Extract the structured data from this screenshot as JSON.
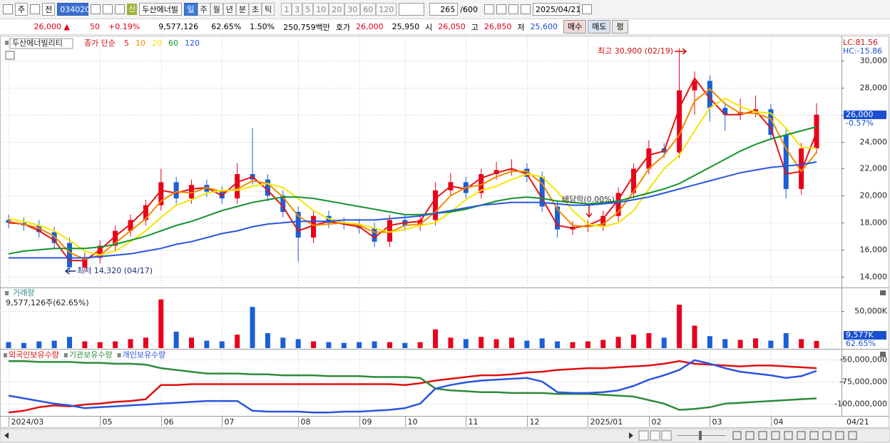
{
  "toolbar": {
    "market": "주",
    "prev": "전",
    "code": "034020",
    "credit": "신",
    "name": "두산에너빌",
    "periods": [
      "일",
      "주",
      "월",
      "년",
      "분",
      "초",
      "틱"
    ],
    "intervals": [
      "1",
      "3",
      "5",
      "10",
      "20",
      "30",
      "60",
      "120"
    ],
    "count": "265",
    "max": "/600",
    "date": "2025/04/21"
  },
  "quote": {
    "price": "26,000 ▲",
    "change": "50",
    "change_pct": "+0.19%",
    "volume": "9,577,126",
    "volume_ratio": "62.65%",
    "turnover_pct": "1.50%",
    "amount": "250,759백만",
    "ask_label": "호가",
    "ask": "26,000",
    "bid": "25,950",
    "open_label": "시",
    "open": "26,050",
    "high_label": "고",
    "high": "26,850",
    "low_label": "저",
    "low": "25,600",
    "buy": "매수",
    "sell": "매도",
    "flat": "펑"
  },
  "chart_data": [
    {
      "type": "candlestick",
      "title": "두산에너빌리티",
      "legend_title": "종가 단순",
      "categories": [
        "2024/03",
        null,
        null,
        null,
        null,
        null,
        "05",
        null,
        null,
        null,
        "06",
        null,
        null,
        null,
        "07",
        null,
        null,
        null,
        null,
        "08",
        null,
        null,
        null,
        "09",
        null,
        null,
        "10",
        null,
        null,
        null,
        "11",
        null,
        null,
        null,
        "12",
        null,
        null,
        null,
        "2025/01",
        null,
        null,
        null,
        "02",
        null,
        null,
        null,
        "03",
        null,
        null,
        null,
        "04",
        null,
        null,
        null
      ],
      "open": [
        18200,
        18000,
        17800,
        17300,
        16500,
        14700,
        15400,
        16300,
        17400,
        18200,
        19300,
        21000,
        19800,
        20800,
        20300,
        19800,
        21600,
        21200,
        20000,
        18800,
        16900,
        18500,
        18000,
        17900,
        17600,
        16600,
        18200,
        17800,
        18200,
        20400,
        21000,
        20200,
        21600,
        21900,
        22000,
        21400,
        19200,
        17500,
        17700,
        17800,
        18500,
        20200,
        22000,
        23500,
        23200,
        27800,
        28500,
        26500,
        26000,
        26200,
        26400,
        24500,
        20500,
        23500
      ],
      "high": [
        18600,
        18400,
        18200,
        17700,
        16900,
        15800,
        16700,
        17800,
        18600,
        19700,
        22000,
        21400,
        21200,
        21200,
        20700,
        22400,
        25000,
        21600,
        20400,
        19200,
        18900,
        18900,
        18400,
        18300,
        18000,
        18600,
        18600,
        18600,
        21000,
        21700,
        21400,
        22000,
        22500,
        22700,
        22400,
        21800,
        19600,
        18100,
        18200,
        18900,
        20600,
        22400,
        24100,
        23900,
        30900,
        29200,
        28900,
        26900,
        27200,
        27400,
        26800,
        24900,
        23900,
        26850
      ],
      "low": [
        17600,
        17400,
        16900,
        16100,
        14320,
        14400,
        15000,
        15900,
        17000,
        17800,
        18900,
        19400,
        19400,
        19900,
        19400,
        19400,
        20800,
        19600,
        18400,
        15100,
        16500,
        17600,
        17500,
        17200,
        16200,
        16200,
        17400,
        17400,
        17800,
        20000,
        19800,
        19800,
        21200,
        21500,
        21000,
        18800,
        16900,
        17100,
        17300,
        17400,
        18100,
        19800,
        21600,
        22800,
        22800,
        26000,
        25500,
        24800,
        25600,
        25800,
        24100,
        19800,
        20100,
        23100
      ],
      "close": [
        18000,
        17800,
        17300,
        16500,
        14700,
        15400,
        16300,
        17400,
        18200,
        19300,
        21000,
        19800,
        20800,
        20300,
        19800,
        21600,
        21200,
        20000,
        18800,
        16900,
        18500,
        18000,
        17900,
        17600,
        16600,
        18200,
        17800,
        18200,
        20400,
        21000,
        20200,
        21600,
        21900,
        22000,
        21400,
        19200,
        17500,
        17700,
        17800,
        18500,
        20200,
        22000,
        23500,
        23200,
        27800,
        28500,
        26500,
        26000,
        26200,
        26400,
        24500,
        20500,
        23500,
        26000
      ],
      "up_color": "#e8001c",
      "down_color": "#1a5fd6",
      "series": [
        {
          "name": "5",
          "color": "#e31414",
          "values": [
            18000,
            17900,
            17400,
            16700,
            15200,
            15200,
            16000,
            17000,
            17900,
            19000,
            20400,
            20200,
            20500,
            20600,
            20000,
            21000,
            21400,
            20400,
            19200,
            17400,
            17800,
            18100,
            17900,
            17700,
            16900,
            17800,
            18000,
            18100,
            19800,
            20700,
            20500,
            21300,
            21700,
            22000,
            21600,
            19800,
            17800,
            17600,
            17800,
            18300,
            19700,
            21500,
            23000,
            23300,
            26500,
            28700,
            27200,
            26000,
            26000,
            26300,
            25000,
            21600,
            21800,
            24700
          ]
        },
        {
          "name": "10",
          "color": "#f08a00",
          "values": [
            18100,
            17900,
            17600,
            17000,
            15800,
            15300,
            15600,
            16500,
            17400,
            18300,
            19600,
            20300,
            20200,
            20600,
            20300,
            20500,
            21100,
            20900,
            19900,
            18500,
            17800,
            17900,
            18000,
            17800,
            17300,
            17300,
            17800,
            17900,
            18800,
            20000,
            20600,
            20800,
            21400,
            21800,
            21800,
            20900,
            19000,
            17800,
            17700,
            17900,
            18800,
            20300,
            22000,
            23000,
            24500,
            27000,
            27900,
            26800,
            26100,
            26100,
            25700,
            23500,
            21800,
            23200
          ]
        },
        {
          "name": "20",
          "color": "#f2e600",
          "values": [
            18300,
            18100,
            17800,
            17400,
            16700,
            15900,
            15600,
            15900,
            16600,
            17400,
            18400,
            19300,
            19700,
            20200,
            20400,
            20400,
            20700,
            20900,
            20600,
            19800,
            18900,
            18300,
            18000,
            17900,
            17600,
            17300,
            17500,
            17800,
            18000,
            18800,
            19700,
            20400,
            20700,
            21200,
            21600,
            21400,
            20300,
            18900,
            17900,
            17700,
            18000,
            18900,
            20500,
            22000,
            23000,
            24800,
            26500,
            27200,
            26600,
            26200,
            26100,
            25000,
            23600,
            23500
          ]
        },
        {
          "name": "60",
          "color": "#13922e",
          "values": [
            15700,
            15900,
            16000,
            16100,
            16100,
            16100,
            16200,
            16400,
            16700,
            17000,
            17400,
            17800,
            18100,
            18500,
            18900,
            19200,
            19500,
            19700,
            19900,
            19900,
            19800,
            19600,
            19400,
            19200,
            19000,
            18800,
            18600,
            18600,
            18700,
            18800,
            19000,
            19300,
            19600,
            19800,
            19900,
            19800,
            19600,
            19500,
            19400,
            19500,
            19600,
            19900,
            20200,
            20500,
            20900,
            21500,
            22100,
            22700,
            23300,
            23800,
            24200,
            24500,
            24800,
            25100
          ]
        },
        {
          "name": "120",
          "color": "#2a55e0",
          "values": [
            15400,
            15400,
            15400,
            15400,
            15400,
            15400,
            15500,
            15600,
            15700,
            15900,
            16100,
            16400,
            16600,
            16900,
            17200,
            17400,
            17700,
            17900,
            18000,
            18100,
            18100,
            18100,
            18200,
            18200,
            18200,
            18300,
            18400,
            18500,
            18700,
            18900,
            19100,
            19300,
            19400,
            19500,
            19500,
            19500,
            19400,
            19300,
            19300,
            19400,
            19500,
            19700,
            19900,
            20200,
            20500,
            20800,
            21100,
            21400,
            21700,
            21900,
            22100,
            22200,
            22300,
            22500
          ]
        }
      ],
      "ylim": [
        13260,
        31740
      ],
      "yticks": [
        {
          "value": 14000,
          "label": "14,000"
        },
        {
          "value": 16000,
          "label": "16,000"
        },
        {
          "value": 18000,
          "label": "18,000"
        },
        {
          "value": 20000,
          "label": "20,000"
        },
        {
          "value": 22000,
          "label": "22,000"
        },
        {
          "value": 24000,
          "label": "24,000"
        },
        {
          "value": 26000,
          "label": "26,000"
        },
        {
          "value": 28000,
          "label": "28,000"
        },
        {
          "value": 30000,
          "label": "30,000"
        }
      ],
      "grid": true,
      "annotations": [
        "최고 30,900 (02/19)",
        "최저 14,320 (04/17)",
        "배당락(0.00%)"
      ],
      "lc_label": "LC:81.56",
      "hc_label": "HC:-15.86",
      "current_price_label": "26,000",
      "current_change_label": "-0.57%",
      "cursor_date": "04/21"
    },
    {
      "type": "bar",
      "title": "거래량",
      "subtitle": "9,577,126주(62.65%)",
      "values": [
        8000,
        7000,
        9000,
        10000,
        15000,
        9000,
        8000,
        9000,
        12000,
        14000,
        65000,
        22000,
        14000,
        10000,
        9000,
        18000,
        55000,
        20000,
        14000,
        12000,
        9000,
        8000,
        7000,
        8000,
        9000,
        8000,
        7000,
        8000,
        25000,
        14000,
        12000,
        15000,
        12000,
        14000,
        10000,
        13000,
        9000,
        8000,
        9000,
        11000,
        15000,
        18000,
        20000,
        14000,
        58000,
        30000,
        16000,
        12000,
        11000,
        13000,
        10000,
        20000,
        12000,
        9577
      ],
      "ylim": [
        0,
        80000
      ],
      "yticks": [
        {
          "value": 50000,
          "label": "50,000K"
        }
      ],
      "grid": true,
      "current_label": "9,577K",
      "current_pct_label": "62.65%"
    },
    {
      "type": "line",
      "series": [
        {
          "name": "외국인보유수량",
          "color": "#e01010",
          "values": [
            -110000000,
            -108000000,
            -104000000,
            -102000000,
            -103000000,
            -101000000,
            -100000000,
            -98000000,
            -97000000,
            -95000000,
            -79000000,
            -79000000,
            -78000000,
            -78000000,
            -78000000,
            -78000000,
            -78000000,
            -78000000,
            -78000000,
            -78000000,
            -78000000,
            -78000000,
            -78000000,
            -78000000,
            -78000000,
            -78000000,
            -79000000,
            -77000000,
            -74000000,
            -72000000,
            -70000000,
            -68000000,
            -68000000,
            -67000000,
            -65000000,
            -64000000,
            -62000000,
            -61000000,
            -60000000,
            -60000000,
            -59000000,
            -58000000,
            -57000000,
            -55000000,
            -52000000,
            -55000000,
            -56000000,
            -57000000,
            -58000000,
            -57000000,
            -57000000,
            -58000000,
            -59000000,
            -60000000
          ]
        },
        {
          "name": "기관보유수량",
          "color": "#2e8b3a",
          "values": [
            -52000000,
            -52000000,
            -53000000,
            -53000000,
            -53000000,
            -54000000,
            -54000000,
            -55000000,
            -55000000,
            -56000000,
            -60000000,
            -62000000,
            -64000000,
            -66000000,
            -66000000,
            -66000000,
            -67000000,
            -67000000,
            -68000000,
            -68000000,
            -68000000,
            -69000000,
            -69000000,
            -69000000,
            -70000000,
            -70000000,
            -70000000,
            -71000000,
            -83000000,
            -85000000,
            -86000000,
            -87000000,
            -87000000,
            -88000000,
            -88000000,
            -88000000,
            -89000000,
            -89000000,
            -89000000,
            -90000000,
            -91000000,
            -92000000,
            -96000000,
            -100000000,
            -107000000,
            -106000000,
            -104000000,
            -100000000,
            -99000000,
            -98000000,
            -97000000,
            -96000000,
            -95000000,
            -94000000
          ]
        },
        {
          "name": "개인보유수량",
          "color": "#2a55e0",
          "values": [
            -91000000,
            -94000000,
            -97000000,
            -100000000,
            -102000000,
            -105000000,
            -104000000,
            -103000000,
            -102000000,
            -101000000,
            -100000000,
            -99000000,
            -98000000,
            -97000000,
            -97000000,
            -97000000,
            -108000000,
            -109000000,
            -109000000,
            -109000000,
            -110000000,
            -110000000,
            -109000000,
            -109000000,
            -108000000,
            -107000000,
            -105000000,
            -100000000,
            -83000000,
            -79000000,
            -76000000,
            -74000000,
            -73000000,
            -72000000,
            -71000000,
            -75000000,
            -87000000,
            -88000000,
            -88000000,
            -87000000,
            -85000000,
            -80000000,
            -73000000,
            -68000000,
            -62000000,
            -51000000,
            -55000000,
            -60000000,
            -64000000,
            -66000000,
            -68000000,
            -71000000,
            -69000000,
            -63000000
          ]
        }
      ],
      "ylim": [
        -113000000,
        -39000000
      ],
      "yticks": [
        {
          "value": -50000000,
          "label": "-50,000,000"
        },
        {
          "value": -75000000,
          "label": "-75,000,000"
        },
        {
          "value": -100000000,
          "label": "-100,000,000"
        }
      ],
      "grid": true
    }
  ]
}
